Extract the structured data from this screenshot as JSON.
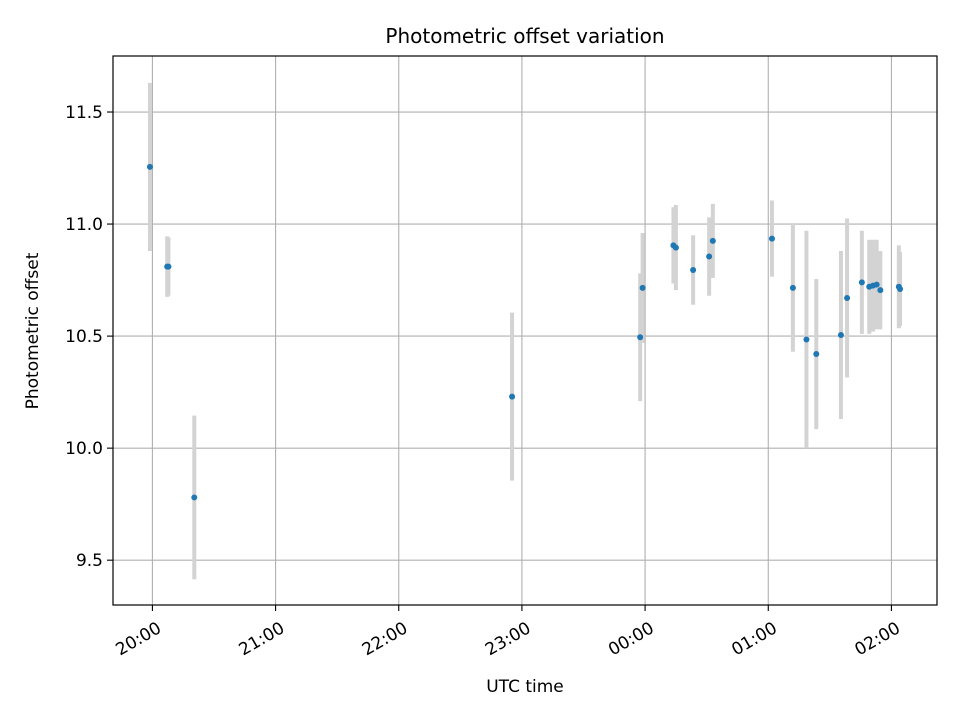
{
  "chart_data": {
    "type": "scatter",
    "title": "Photometric offset variation",
    "xlabel": "UTC time",
    "ylabel": "Photometric offset",
    "x_tick_labels": [
      "20:00",
      "21:00",
      "22:00",
      "23:00",
      "00:00",
      "01:00",
      "02:00"
    ],
    "y_tick_labels": [
      "9.5",
      "10.0",
      "10.5",
      "11.0",
      "11.5"
    ],
    "x_ticks_hours": [
      20,
      21,
      22,
      23,
      24,
      25,
      26
    ],
    "y_ticks": [
      9.5,
      10.0,
      10.5,
      11.0,
      11.5
    ],
    "xlim_hours": [
      19.68,
      26.37
    ],
    "ylim": [
      9.3,
      11.75
    ],
    "grid": true,
    "colors": {
      "point": "#1f77b4",
      "errorbar": "#d3d3d3",
      "grid": "#b0b0b0"
    },
    "points": [
      {
        "x": 19.98,
        "y": 11.255,
        "err": 0.375
      },
      {
        "x": 20.12,
        "y": 10.81,
        "err": 0.135
      },
      {
        "x": 20.13,
        "y": 10.81,
        "err": 0.13
      },
      {
        "x": 20.34,
        "y": 9.78,
        "err": 0.365
      },
      {
        "x": 22.92,
        "y": 10.23,
        "err": 0.375
      },
      {
        "x": 23.96,
        "y": 10.495,
        "err": 0.285
      },
      {
        "x": 23.98,
        "y": 10.715,
        "err": 0.245
      },
      {
        "x": 24.23,
        "y": 10.905,
        "err": 0.17
      },
      {
        "x": 24.25,
        "y": 10.895,
        "err": 0.19
      },
      {
        "x": 24.39,
        "y": 10.795,
        "err": 0.155
      },
      {
        "x": 24.52,
        "y": 10.855,
        "err": 0.175
      },
      {
        "x": 24.55,
        "y": 10.925,
        "err": 0.165
      },
      {
        "x": 25.03,
        "y": 10.935,
        "err": 0.17
      },
      {
        "x": 25.2,
        "y": 10.715,
        "err": 0.285
      },
      {
        "x": 25.31,
        "y": 10.485,
        "err": 0.485
      },
      {
        "x": 25.39,
        "y": 10.42,
        "err": 0.335
      },
      {
        "x": 25.59,
        "y": 10.505,
        "err": 0.375
      },
      {
        "x": 25.64,
        "y": 10.67,
        "err": 0.355
      },
      {
        "x": 25.76,
        "y": 10.74,
        "err": 0.23
      },
      {
        "x": 25.82,
        "y": 10.72,
        "err": 0.21
      },
      {
        "x": 25.85,
        "y": 10.725,
        "err": 0.205
      },
      {
        "x": 25.88,
        "y": 10.73,
        "err": 0.2
      },
      {
        "x": 25.91,
        "y": 10.705,
        "err": 0.175
      },
      {
        "x": 26.06,
        "y": 10.72,
        "err": 0.185
      },
      {
        "x": 26.07,
        "y": 10.71,
        "err": 0.165
      }
    ]
  }
}
